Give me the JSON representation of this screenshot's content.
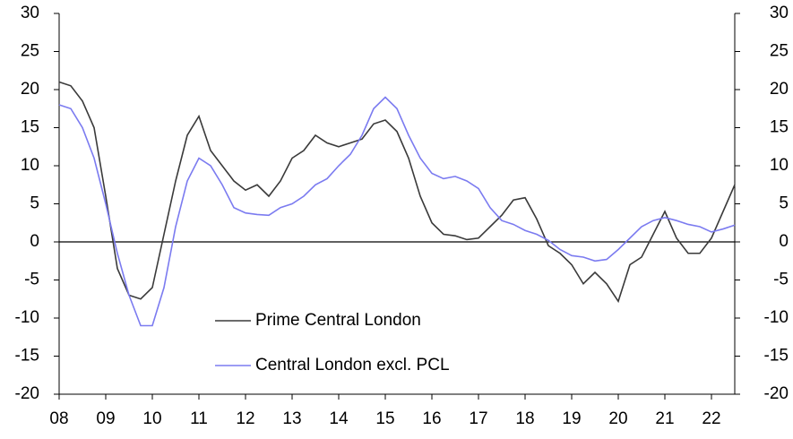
{
  "chart_data": {
    "type": "line",
    "x": [
      2008,
      2008.25,
      2008.5,
      2008.75,
      2009,
      2009.25,
      2009.5,
      2009.75,
      2010,
      2010.25,
      2010.5,
      2010.75,
      2011,
      2011.25,
      2011.5,
      2011.75,
      2012,
      2012.25,
      2012.5,
      2012.75,
      2013,
      2013.25,
      2013.5,
      2013.75,
      2014,
      2014.25,
      2014.5,
      2014.75,
      2015,
      2015.25,
      2015.5,
      2015.75,
      2016,
      2016.25,
      2016.5,
      2016.75,
      2017,
      2017.25,
      2017.5,
      2017.75,
      2018,
      2018.25,
      2018.5,
      2018.75,
      2019,
      2019.25,
      2019.5,
      2019.75,
      2020,
      2020.25,
      2020.5,
      2020.75,
      2021,
      2021.25,
      2021.5,
      2021.75,
      2022,
      2022.25,
      2022.5
    ],
    "series": [
      {
        "name": "Prime Central London",
        "color": "#3a3a3a",
        "values": [
          21,
          20.5,
          18.5,
          15,
          6,
          -3.5,
          -7,
          -7.5,
          -6,
          1,
          8,
          14,
          16.5,
          12,
          10,
          8,
          6.8,
          7.5,
          6,
          8,
          11,
          12,
          14,
          13,
          12.5,
          13,
          13.5,
          15.5,
          16,
          14.5,
          11,
          6,
          2.5,
          1,
          0.8,
          0.3,
          0.5,
          2,
          3.5,
          5.5,
          5.8,
          3,
          -0.5,
          -1.5,
          -3,
          -5.5,
          -4,
          -5.5,
          -7.8,
          -3,
          -2,
          1,
          4,
          0.5,
          -1.5,
          -1.5,
          0.5,
          4,
          7.5
        ]
      },
      {
        "name": "Central London excl. PCL",
        "color": "#7b7bf0",
        "values": [
          18,
          17.5,
          15,
          11,
          5,
          -1.5,
          -7,
          -11,
          -11,
          -6,
          2,
          8,
          11,
          10,
          7.5,
          4.5,
          3.8,
          3.6,
          3.5,
          4.5,
          5,
          6,
          7.5,
          8.3,
          10,
          11.5,
          14,
          17.5,
          19,
          17.5,
          14,
          11,
          9,
          8.3,
          8.6,
          8,
          7,
          4.5,
          2.8,
          2.3,
          1.5,
          1,
          0.2,
          -1,
          -1.8,
          -2,
          -2.5,
          -2.3,
          -1,
          0.5,
          2,
          2.8,
          3.2,
          2.8,
          2.3,
          2,
          1.3,
          1.7,
          2.2
        ]
      }
    ],
    "xlim": [
      2008,
      2022.5
    ],
    "xticks": [
      {
        "value": 2008,
        "label": "08"
      },
      {
        "value": 2009,
        "label": "09"
      },
      {
        "value": 2010,
        "label": "10"
      },
      {
        "value": 2011,
        "label": "11"
      },
      {
        "value": 2012,
        "label": "12"
      },
      {
        "value": 2013,
        "label": "13"
      },
      {
        "value": 2014,
        "label": "14"
      },
      {
        "value": 2015,
        "label": "15"
      },
      {
        "value": 2016,
        "label": "16"
      },
      {
        "value": 2017,
        "label": "17"
      },
      {
        "value": 2018,
        "label": "18"
      },
      {
        "value": 2019,
        "label": "19"
      },
      {
        "value": 2020,
        "label": "20"
      },
      {
        "value": 2021,
        "label": "21"
      },
      {
        "value": 2022,
        "label": "22"
      }
    ],
    "ylim": [
      -20,
      30
    ],
    "yticks": [
      -20,
      -15,
      -10,
      -5,
      0,
      5,
      10,
      15,
      20,
      25,
      30
    ],
    "y2lim": [
      -20,
      30
    ],
    "y2ticks": [
      -20,
      -15,
      -10,
      -5,
      0,
      5,
      10,
      15,
      20,
      25,
      30
    ],
    "grid": false,
    "legend": "bottom-left"
  }
}
